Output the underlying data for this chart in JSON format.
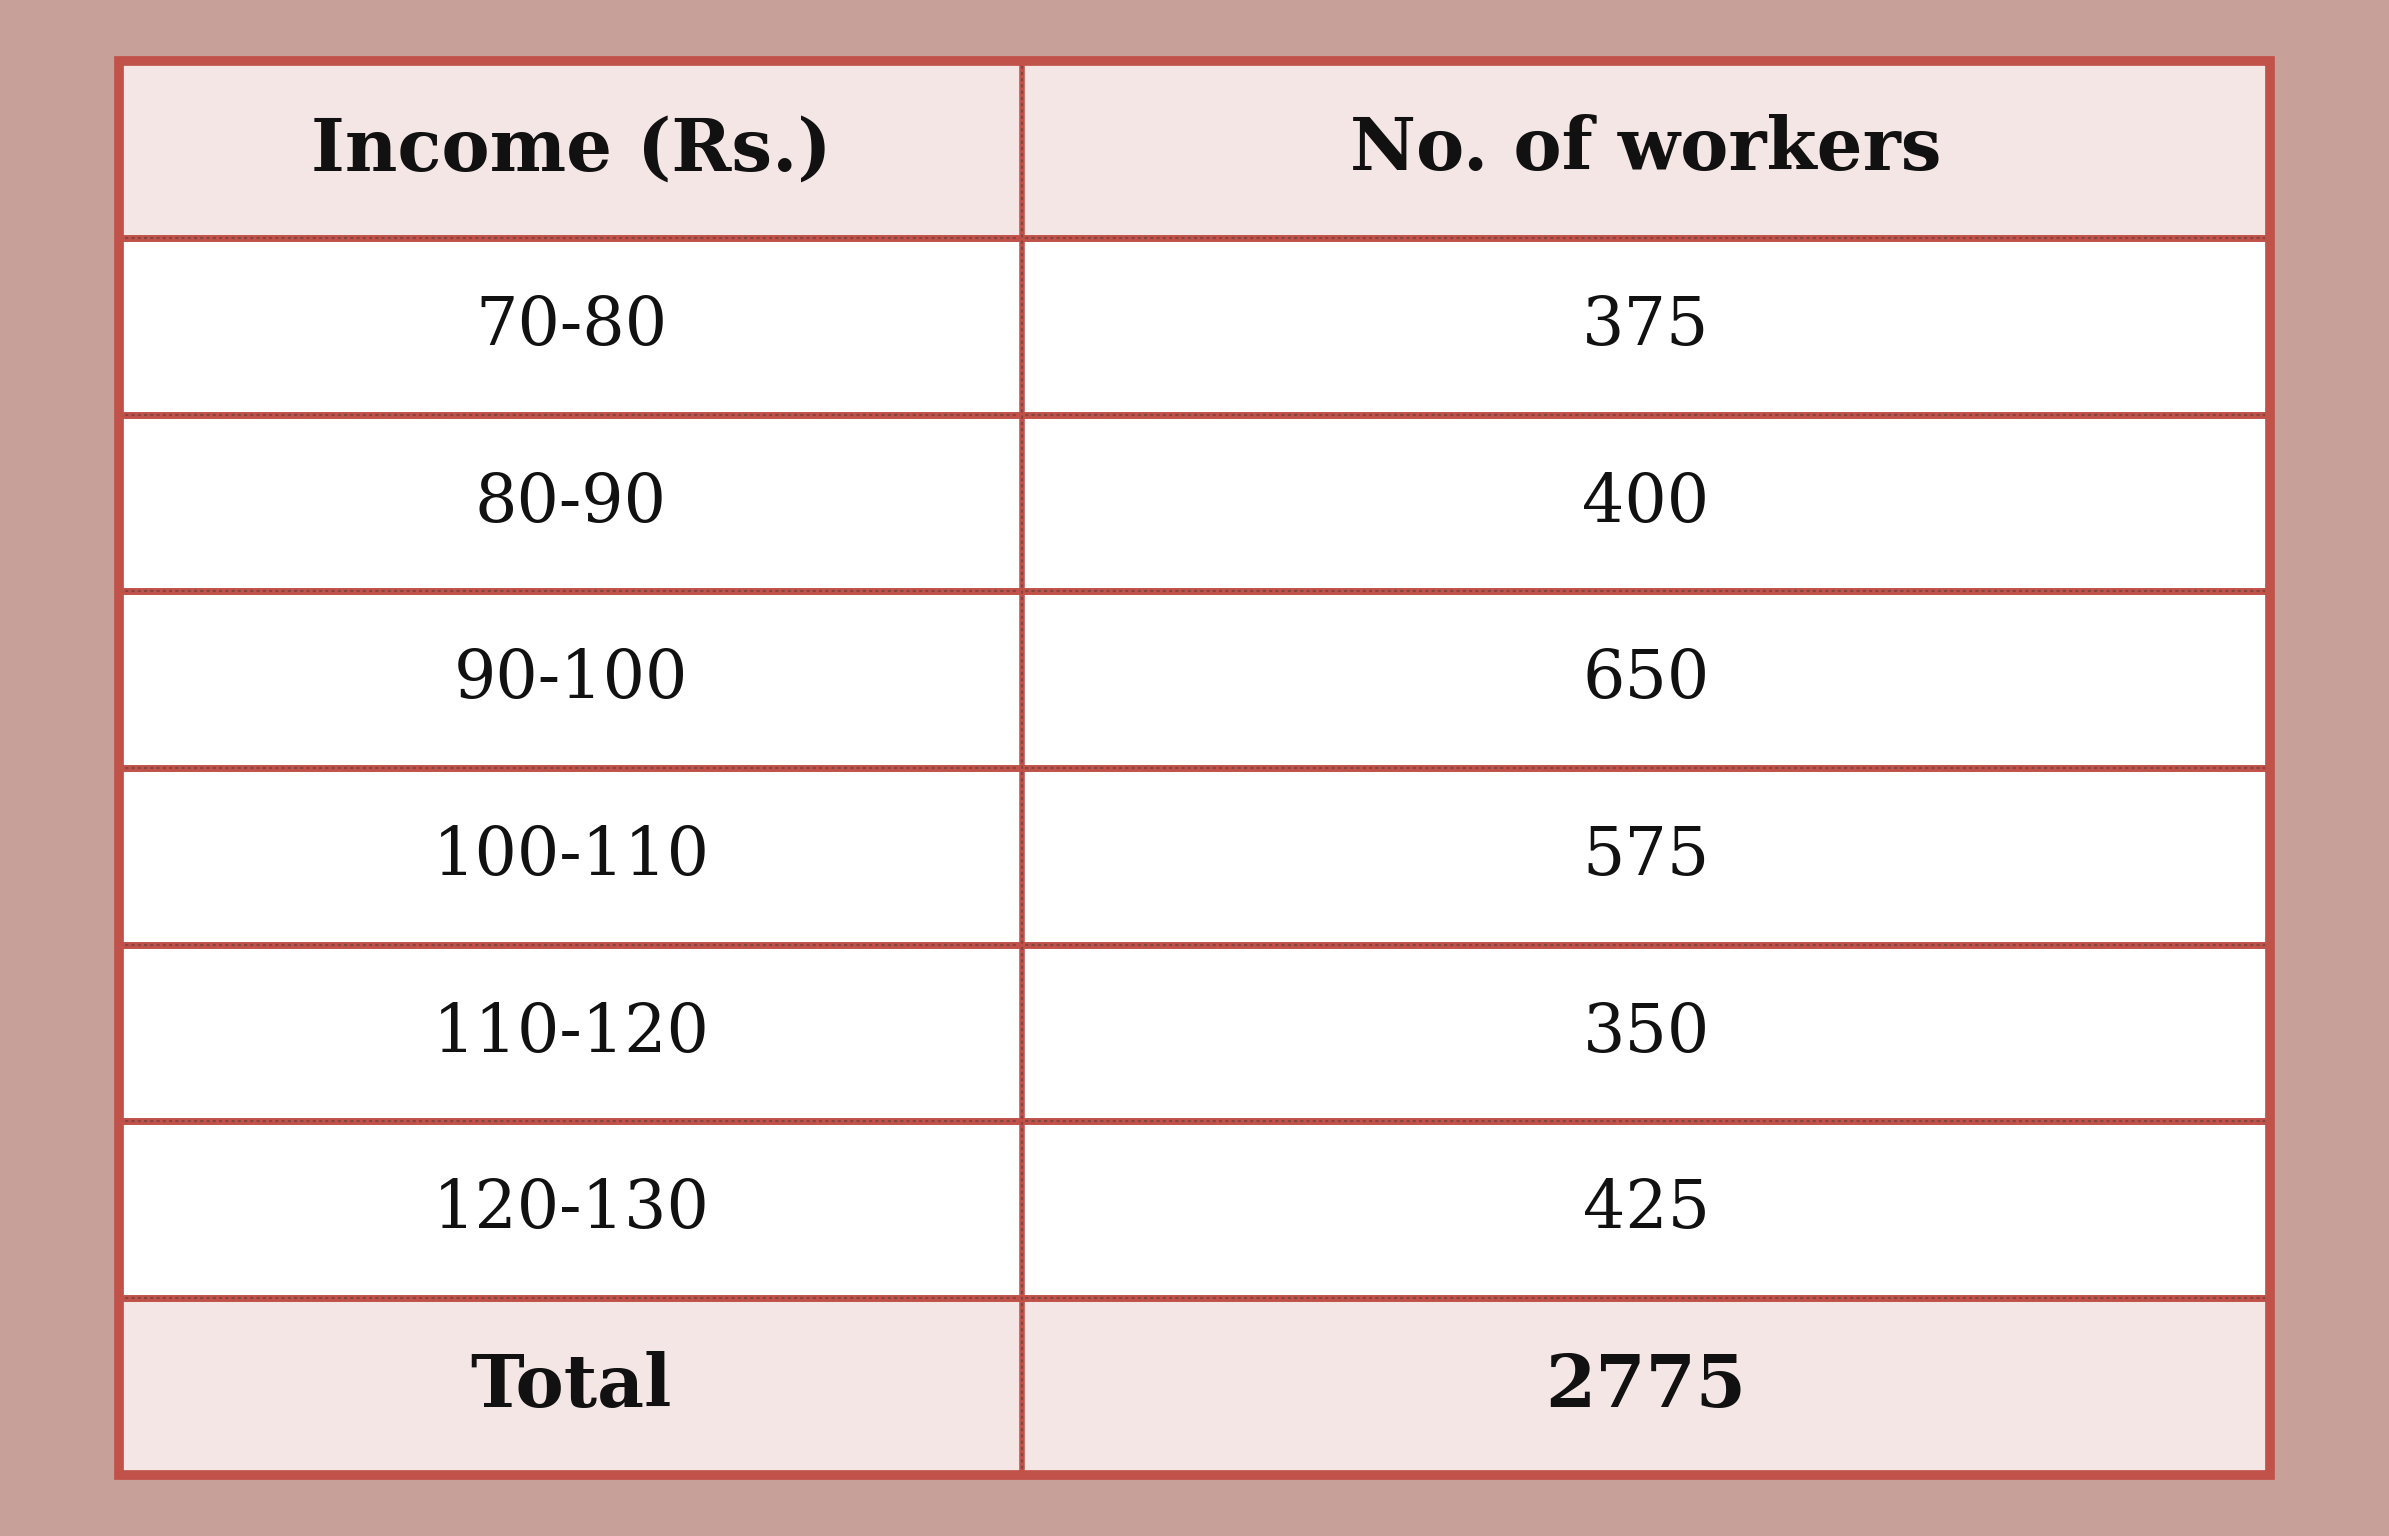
{
  "col1_header": "Income (Rs.)",
  "col2_header": "No. of workers",
  "rows": [
    [
      "70-80",
      "375"
    ],
    [
      "80-90",
      "400"
    ],
    [
      "90-100",
      "650"
    ],
    [
      "100-110",
      "575"
    ],
    [
      "110-120",
      "350"
    ],
    [
      "120-130",
      "425"
    ],
    [
      "Total",
      "2775"
    ]
  ],
  "header_bg": "#f5e6e6",
  "row_bg": "#ffffff",
  "total_bg": "#f5e6e6",
  "border_color": "#c0524a",
  "header_font_size": 52,
  "cell_font_size": 48,
  "total_font_size": 52,
  "fig_bg": "#c8a09a",
  "col_split": 0.42
}
